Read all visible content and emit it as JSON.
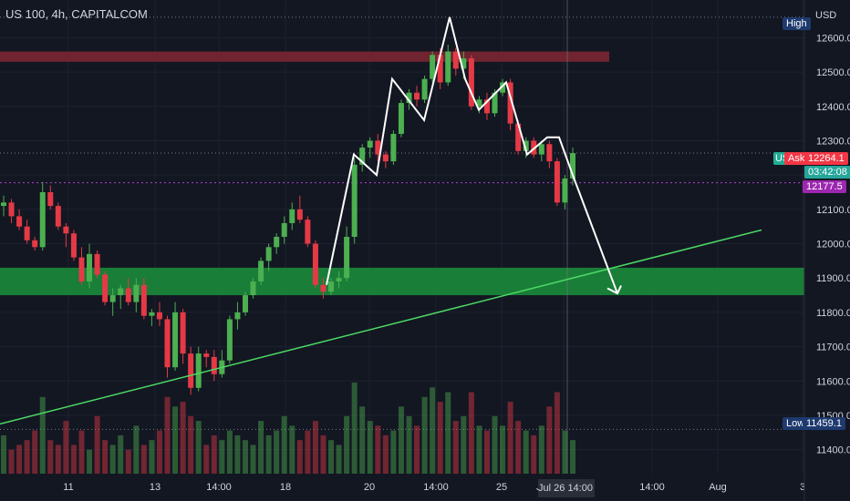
{
  "header": {
    "symbol_title": "US 100, 4h, CAPITALCOM",
    "currency_label": "USD"
  },
  "colors": {
    "background": "#131722",
    "up": "#26a69a",
    "down": "#ef5350",
    "candle_up": "#4caf50",
    "candle_down": "#e53946",
    "support_zone": "#1b8a3a",
    "resistance_zone": "#7a2632",
    "trendline": "#4cd964",
    "ask_tag": "#f23645",
    "bid_tag": "#22ab94",
    "purple_line": "#b43cd9",
    "high_low_tag": "#1e3a6e"
  },
  "chart_data": {
    "type": "candlestick",
    "title": "US 100, 4h, CAPITALCOM",
    "ylabel": "USD",
    "ylim": [
      11330,
      12710
    ],
    "y_ticks": [
      12600.0,
      12500.0,
      12400.0,
      12300.0,
      12200.0,
      12100.0,
      12000.0,
      11900.0,
      11800.0,
      11700.0,
      11600.0,
      11500.0,
      11400.0
    ],
    "x_tick_labels": [
      "11",
      "13",
      "14:00",
      "18",
      "20",
      "14:00",
      "25",
      "Jul 26  14:00",
      "14:00",
      "Aug",
      "3"
    ],
    "price_tags": {
      "high_label": "High",
      "low_label": "Low",
      "low_value": "11459.1",
      "ask_symbol": "US",
      "ask_label": "Ask",
      "ask_value": "12264.1",
      "countdown": "03:42:08",
      "purple_value": "12177.5"
    },
    "zones": [
      {
        "name": "resistance",
        "from": 12530,
        "to": 12560
      },
      {
        "name": "support",
        "from": 11850,
        "to": 11930
      }
    ],
    "trendline": {
      "from": [
        0,
        11475
      ],
      "to": [
        1,
        12040
      ]
    },
    "candles_ohlc": [
      [
        12110,
        12140,
        12080,
        12120
      ],
      [
        12120,
        12130,
        12060,
        12080
      ],
      [
        12080,
        12100,
        12040,
        12050
      ],
      [
        12050,
        12070,
        12000,
        12010
      ],
      [
        12010,
        12020,
        11980,
        11990
      ],
      [
        11990,
        12180,
        11980,
        12150
      ],
      [
        12150,
        12170,
        12100,
        12110
      ],
      [
        12110,
        12120,
        12040,
        12050
      ],
      [
        12050,
        12060,
        11990,
        12030
      ],
      [
        12030,
        12040,
        11950,
        11960
      ],
      [
        11960,
        11990,
        11880,
        11890
      ],
      [
        11890,
        12000,
        11870,
        11970
      ],
      [
        11970,
        11980,
        11900,
        11910
      ],
      [
        11910,
        11920,
        11820,
        11830
      ],
      [
        11830,
        11870,
        11790,
        11850
      ],
      [
        11850,
        11880,
        11810,
        11870
      ],
      [
        11870,
        11900,
        11820,
        11830
      ],
      [
        11830,
        11900,
        11800,
        11880
      ],
      [
        11880,
        11900,
        11780,
        11790
      ],
      [
        11790,
        11810,
        11760,
        11800
      ],
      [
        11800,
        11830,
        11760,
        11780
      ],
      [
        11780,
        11790,
        11610,
        11640
      ],
      [
        11640,
        11830,
        11630,
        11800
      ],
      [
        11800,
        11810,
        11650,
        11680
      ],
      [
        11680,
        11700,
        11560,
        11580
      ],
      [
        11580,
        11700,
        11570,
        11680
      ],
      [
        11680,
        11690,
        11640,
        11670
      ],
      [
        11670,
        11690,
        11600,
        11620
      ],
      [
        11620,
        11690,
        11610,
        11660
      ],
      [
        11660,
        11790,
        11650,
        11780
      ],
      [
        11780,
        11830,
        11750,
        11800
      ],
      [
        11800,
        11860,
        11790,
        11850
      ],
      [
        11850,
        11900,
        11840,
        11890
      ],
      [
        11890,
        11960,
        11880,
        11950
      ],
      [
        11950,
        12000,
        11920,
        11990
      ],
      [
        11990,
        12030,
        11970,
        12020
      ],
      [
        12020,
        12080,
        12000,
        12060
      ],
      [
        12060,
        12120,
        12040,
        12100
      ],
      [
        12100,
        12140,
        12060,
        12070
      ],
      [
        12070,
        12080,
        11990,
        12000
      ],
      [
        12000,
        12010,
        11870,
        11880
      ],
      [
        11880,
        11900,
        11840,
        11860
      ],
      [
        11860,
        11900,
        11850,
        11890
      ],
      [
        11890,
        11920,
        11870,
        11900
      ],
      [
        11900,
        12050,
        11890,
        12020
      ],
      [
        12020,
        12250,
        12000,
        12230
      ],
      [
        12230,
        12290,
        12210,
        12280
      ],
      [
        12280,
        12310,
        12250,
        12300
      ],
      [
        12300,
        12320,
        12240,
        12260
      ],
      [
        12260,
        12270,
        12220,
        12240
      ],
      [
        12240,
        12330,
        12230,
        12320
      ],
      [
        12320,
        12420,
        12310,
        12410
      ],
      [
        12410,
        12450,
        12390,
        12440
      ],
      [
        12440,
        12460,
        12400,
        12420
      ],
      [
        12420,
        12490,
        12410,
        12480
      ],
      [
        12480,
        12560,
        12470,
        12550
      ],
      [
        12550,
        12570,
        12450,
        12470
      ],
      [
        12470,
        12580,
        12460,
        12560
      ],
      [
        12560,
        12570,
        12490,
        12510
      ],
      [
        12510,
        12560,
        12480,
        12540
      ],
      [
        12540,
        12550,
        12390,
        12400
      ],
      [
        12400,
        12430,
        12380,
        12420
      ],
      [
        12420,
        12440,
        12360,
        12380
      ],
      [
        12380,
        12450,
        12370,
        12440
      ],
      [
        12440,
        12480,
        12430,
        12470
      ],
      [
        12470,
        12480,
        12330,
        12350
      ],
      [
        12350,
        12360,
        12260,
        12270
      ],
      [
        12270,
        12310,
        12250,
        12300
      ],
      [
        12300,
        12310,
        12250,
        12260
      ],
      [
        12260,
        12300,
        12240,
        12290
      ],
      [
        12290,
        12300,
        12220,
        12240
      ],
      [
        12240,
        12250,
        12110,
        12120
      ],
      [
        12120,
        12200,
        12100,
        12190
      ],
      [
        12190,
        12280,
        12170,
        12264
      ]
    ],
    "volume": [
      40,
      25,
      30,
      35,
      45,
      80,
      35,
      30,
      55,
      30,
      45,
      25,
      60,
      35,
      30,
      40,
      25,
      50,
      30,
      35,
      45,
      80,
      70,
      75,
      60,
      55,
      30,
      40,
      35,
      45,
      40,
      35,
      30,
      55,
      40,
      45,
      60,
      50,
      35,
      45,
      55,
      40,
      35,
      30,
      60,
      95,
      70,
      55,
      50,
      40,
      45,
      70,
      60,
      50,
      80,
      90,
      75,
      85,
      55,
      60,
      85,
      50,
      45,
      60,
      50,
      75,
      55,
      45,
      40,
      50,
      70,
      85,
      45,
      35
    ]
  }
}
